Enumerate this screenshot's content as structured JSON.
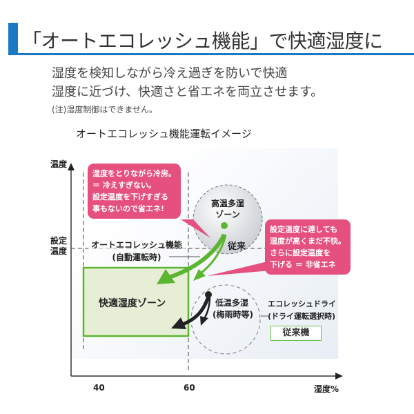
{
  "header": {
    "title": "「オートエコレッシュ機能」で快適湿度に",
    "accent": "#1b79c4"
  },
  "lead": [
    "湿度を検知しながら冷え過ぎを防いで快適",
    "湿度に近づけ、快適さと省エネを両立させます。"
  ],
  "note": "(注)湿度制御はできません。",
  "diagram": {
    "subtitle": "オートエコレッシュ機能運転イメージ",
    "y_axis": {
      "label": "温度",
      "set_label": [
        "設定",
        "温度"
      ]
    },
    "x_axis": {
      "label": "湿度%",
      "ticks": [
        "40",
        "60"
      ]
    },
    "comfort_zone": "快適湿度ゾーン",
    "auto_label": [
      "オートエコレッシュ機能",
      "(自動運転時)"
    ],
    "high_zone": [
      "高温多湿",
      "ゾーン"
    ],
    "conventional": "従来",
    "low_zone": [
      "低温多湿",
      "(梅雨時等)"
    ],
    "dry_label": [
      "エコレッシュドライ",
      "(ドライ運転選択時)"
    ],
    "conventional_machine": "従来機",
    "bubble_left": [
      "湿度をとりながら冷房。",
      "＝ 冷えすぎない。",
      "設定温度を下げすぎる",
      "事もないので省エネ!"
    ],
    "bubble_right": [
      "設定温度に達しても",
      "湿度が高くまだ不快。",
      "さらに設定温度を",
      "下げる ＝ 非省エネ"
    ],
    "colors": {
      "pink": "#e5507f",
      "green": "#5cb531",
      "zone_fill": "#e6eed6"
    }
  }
}
